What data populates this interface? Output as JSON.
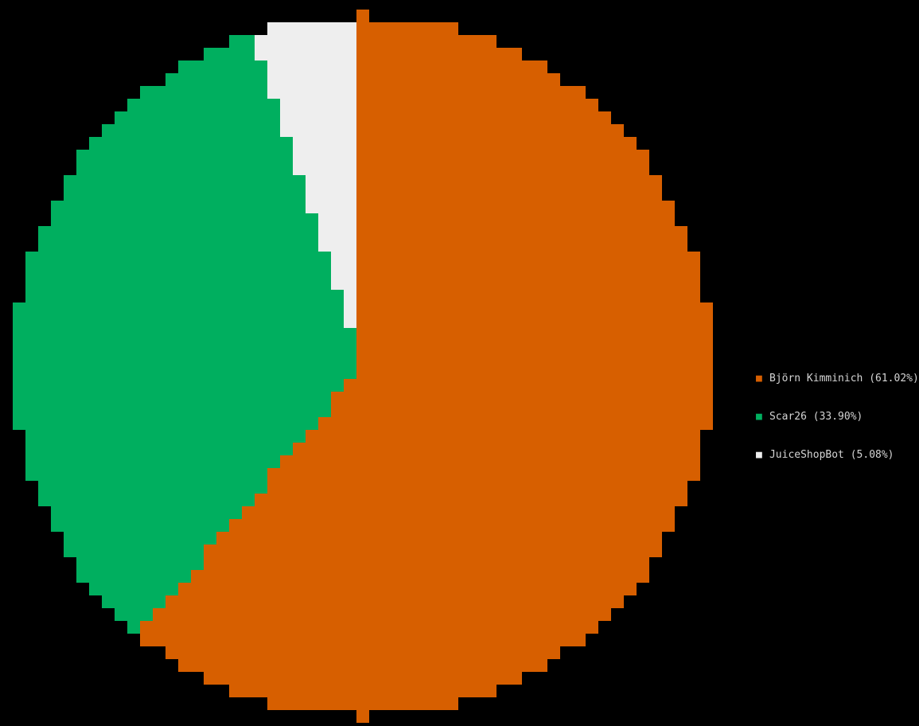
{
  "chart_data": {
    "type": "pie",
    "title": "",
    "legend_position": "right",
    "slices": [
      {
        "name": "Björn Kimminich",
        "percent": 61.02,
        "label": "Björn Kimminich (61.02%)",
        "color": "#d75f00"
      },
      {
        "name": "Scar26",
        "percent": 33.9,
        "label": "Scar26 (33.90%)",
        "color": "#00af5f"
      },
      {
        "name": "JuiceShopBot",
        "percent": 5.08,
        "label": "JuiceShopBot (5.08%)",
        "color": "#eeeeee"
      }
    ],
    "legend_marker": "■"
  }
}
